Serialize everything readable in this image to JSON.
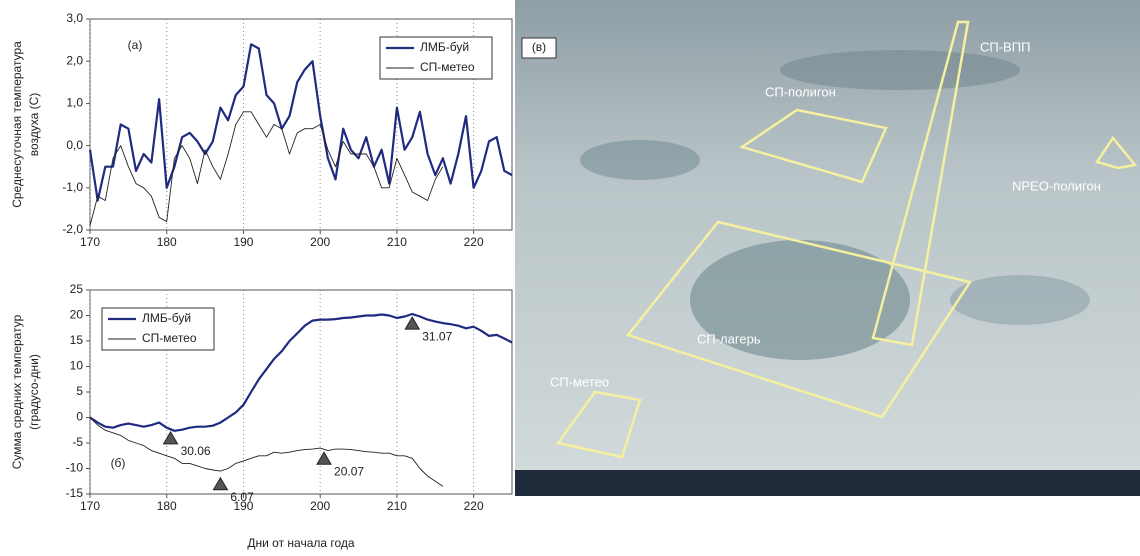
{
  "chart_data": [
    {
      "type": "line",
      "panel_label": "(а)",
      "ylabel": [
        "Среднесуточная температура",
        "воздуха (С)"
      ],
      "x": [
        170,
        171,
        172,
        173,
        174,
        175,
        176,
        177,
        178,
        179,
        180,
        181,
        182,
        183,
        184,
        185,
        186,
        187,
        188,
        189,
        190,
        191,
        192,
        193,
        194,
        195,
        196,
        197,
        198,
        199,
        200,
        201,
        202,
        203,
        204,
        205,
        206,
        207,
        208,
        209,
        210,
        211,
        212,
        213,
        214,
        215,
        216,
        217,
        218,
        219,
        220,
        221,
        222,
        223,
        224,
        225
      ],
      "xlim": [
        170,
        225
      ],
      "xticks": [
        170,
        180,
        190,
        200,
        210,
        220
      ],
      "ylim": [
        -2,
        3
      ],
      "yticks": [
        {
          "value": -2,
          "label": "-2,0"
        },
        {
          "value": -1,
          "label": "-1,0"
        },
        {
          "value": 0,
          "label": "0,0"
        },
        {
          "value": 1,
          "label": "1,0"
        },
        {
          "value": 2,
          "label": "2,0"
        },
        {
          "value": 3,
          "label": "3,0"
        }
      ],
      "grid": "x",
      "legend": "top-right",
      "series": [
        {
          "name": "ЛМБ-буй",
          "color": "#1f2a80",
          "values": [
            -0.1,
            -1.3,
            -0.5,
            -0.5,
            0.5,
            0.4,
            -0.6,
            -0.2,
            -0.4,
            1.1,
            -1.0,
            -0.5,
            0.2,
            0.3,
            0.1,
            -0.2,
            0.1,
            0.9,
            0.6,
            1.2,
            1.4,
            2.4,
            2.3,
            1.2,
            1.0,
            0.4,
            0.7,
            1.5,
            1.8,
            2.0,
            0.7,
            -0.3,
            -0.8,
            0.4,
            -0.1,
            -0.3,
            0.2,
            -0.5,
            -0.1,
            -0.9,
            0.9,
            -0.1,
            0.2,
            0.8,
            -0.2,
            -0.7,
            -0.3,
            -0.9,
            -0.2,
            0.7,
            -1.0,
            -0.6,
            0.1,
            0.2,
            -0.6,
            -0.7
          ]
        },
        {
          "name": "СП-метео",
          "color": "#222222",
          "values": [
            -1.9,
            -1.2,
            -1.3,
            -0.3,
            0.0,
            -0.5,
            -0.9,
            -1.0,
            -1.2,
            -1.7,
            -1.8,
            -0.3,
            0.0,
            -0.3,
            -0.9,
            -0.1,
            -0.5,
            -0.8,
            -0.2,
            0.5,
            0.8,
            0.8,
            0.5,
            0.2,
            0.5,
            0.4,
            -0.2,
            0.3,
            0.4,
            0.4,
            0.5,
            -0.1,
            -0.5,
            0.1,
            -0.2,
            -0.2,
            -0.2,
            -0.5,
            -1.0,
            -1.0,
            -0.3,
            -0.7,
            -1.1,
            -1.2,
            -1.3,
            -0.8,
            -0.5,
            null,
            null,
            null,
            null,
            null,
            null,
            null,
            null,
            null
          ]
        }
      ]
    },
    {
      "type": "line",
      "panel_label": "(б)",
      "ylabel": [
        "Сумма средних температур",
        "(градусо-дни)"
      ],
      "xlabel": "Дни от начала года",
      "x": [
        170,
        171,
        172,
        173,
        174,
        175,
        176,
        177,
        178,
        179,
        180,
        181,
        182,
        183,
        184,
        185,
        186,
        187,
        188,
        189,
        190,
        191,
        192,
        193,
        194,
        195,
        196,
        197,
        198,
        199,
        200,
        201,
        202,
        203,
        204,
        205,
        206,
        207,
        208,
        209,
        210,
        211,
        212,
        213,
        214,
        215,
        216,
        217,
        218,
        219,
        220,
        221,
        222,
        223,
        224,
        225
      ],
      "xlim": [
        170,
        225
      ],
      "xticks": [
        170,
        180,
        190,
        200,
        210,
        220
      ],
      "ylim": [
        -15,
        25
      ],
      "yticks": [
        -15,
        -10,
        -5,
        0,
        5,
        10,
        15,
        20,
        25
      ],
      "grid": "x",
      "legend": "top-left",
      "series": [
        {
          "name": "ЛМБ-буй",
          "color": "#1f2a80",
          "values": [
            0,
            -1,
            -1.8,
            -2,
            -1.5,
            -1.2,
            -1.5,
            -1.8,
            -1.5,
            -1,
            -2,
            -2.6,
            -2.4,
            -2.0,
            -1.8,
            -1.8,
            -1.6,
            -1.0,
            0.0,
            1.0,
            2.5,
            5,
            7.5,
            9.5,
            11.5,
            13,
            15,
            16.5,
            18,
            19,
            19.2,
            19.2,
            19.3,
            19.5,
            19.6,
            19.8,
            20,
            20,
            20.2,
            20,
            19.5,
            19.8,
            20.3,
            19.8,
            19.2,
            18.8,
            18.5,
            18.3,
            18,
            17.5,
            17.8,
            17,
            16,
            16.2,
            15.5,
            14.7
          ]
        },
        {
          "name": "СП-метео",
          "color": "#222222",
          "values": [
            0,
            -1.5,
            -2.5,
            -3,
            -3.5,
            -4.5,
            -5,
            -5.5,
            -6.5,
            -7,
            -7.5,
            -8,
            -9,
            -9,
            -9.5,
            -10,
            -10.3,
            -10.5,
            -10,
            -9,
            -8.5,
            -8,
            -7.5,
            -7.5,
            -6.8,
            -7,
            -6.8,
            -6.5,
            -6.3,
            -6.2,
            -6,
            -6.5,
            -6.2,
            -6.2,
            -6.3,
            -6.5,
            -6.7,
            -6.8,
            -7,
            -7,
            -7.5,
            -7.5,
            -8,
            -10,
            -11.5,
            -12.5,
            -13.5,
            null,
            null,
            null,
            null,
            null,
            null,
            null,
            null,
            null
          ]
        }
      ],
      "annotations": [
        {
          "text": "30.06",
          "x": 180.5,
          "y": -4
        },
        {
          "text": "6.07",
          "x": 187,
          "y": -13
        },
        {
          "text": "20.07",
          "x": 200.5,
          "y": -8
        },
        {
          "text": "31.07",
          "x": 212,
          "y": 18.5
        }
      ]
    }
  ],
  "photo": {
    "panel_label": "(в)",
    "labels": [
      "СП-ВПП",
      "СП-полигон",
      "NPEO-полигон",
      "СП-лагерь",
      "СП-метео"
    ]
  }
}
